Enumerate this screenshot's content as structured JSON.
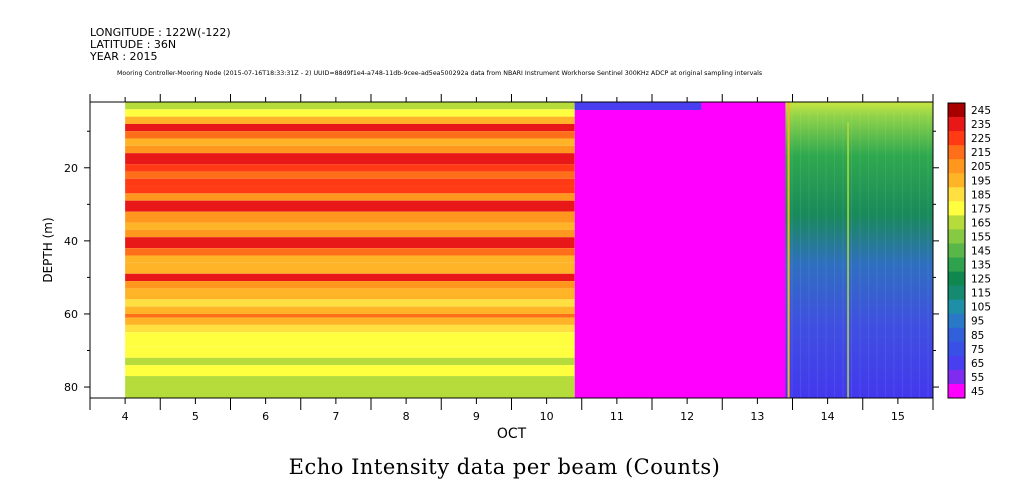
{
  "header": {
    "longitude": "LONGITUDE : 122W(-122)",
    "latitude": "LATITUDE : 36N",
    "year": "YEAR : 2015",
    "subtitle": "Mooring Controller-Mooring Node (2015-07-16T18:33:31Z - 2) UUID=88d9f1e4-a748-11db-9cee-ad5ea500292a data from NBARI Instrument Workhorse Sentinel 300KHz ADCP at original sampling intervals"
  },
  "caption": "Echo Intensity data per beam (Counts)",
  "chart_data": {
    "type": "heatmap",
    "title": "Echo Intensity data per beam (Counts)",
    "xlabel": "OCT",
    "ylabel": "DEPTH (m)",
    "xlim": [
      3.5,
      15.5
    ],
    "ylim": [
      83,
      2
    ],
    "x_ticks": [
      "4",
      "5",
      "6",
      "7",
      "8",
      "9",
      "10",
      "11",
      "12",
      "13",
      "14",
      "15"
    ],
    "y_ticks": [
      "20",
      "40",
      "60",
      "80"
    ],
    "y_tick_values": [
      20,
      40,
      60,
      80
    ],
    "colorbar_levels": [
      245,
      235,
      225,
      215,
      205,
      195,
      185,
      175,
      165,
      155,
      145,
      135,
      125,
      115,
      105,
      95,
      85,
      75,
      65,
      55,
      45
    ],
    "regions": [
      {
        "x_start": 4.0,
        "x_end": 10.4,
        "value_by_depth": [
          [
            2,
            165
          ],
          [
            4,
            175
          ],
          [
            6,
            195
          ],
          [
            8,
            240
          ],
          [
            10,
            215
          ],
          [
            12,
            195
          ],
          [
            14,
            205
          ],
          [
            16,
            240
          ],
          [
            19,
            225
          ],
          [
            21,
            215
          ],
          [
            23,
            225
          ],
          [
            25,
            230
          ],
          [
            27,
            205
          ],
          [
            29,
            240
          ],
          [
            32,
            205
          ],
          [
            35,
            195
          ],
          [
            37,
            205
          ],
          [
            39,
            240
          ],
          [
            42,
            215
          ],
          [
            44,
            200
          ],
          [
            46,
            195
          ],
          [
            49,
            240
          ],
          [
            51,
            205
          ],
          [
            53,
            195
          ],
          [
            56,
            190
          ],
          [
            58,
            200
          ],
          [
            60,
            215
          ],
          [
            61,
            195
          ],
          [
            63,
            185
          ],
          [
            65,
            175
          ],
          [
            69,
            180
          ],
          [
            72,
            170
          ],
          [
            74,
            175
          ],
          [
            77,
            170
          ],
          [
            83,
            160
          ]
        ]
      },
      {
        "x_start": 10.4,
        "x_end": 13.4,
        "value": 45,
        "note_top_band": 65
      },
      {
        "x_start": 13.4,
        "x_end": 15.5,
        "value_top": 165,
        "value_bottom": 60,
        "gradient": "green-to-blue"
      }
    ]
  }
}
